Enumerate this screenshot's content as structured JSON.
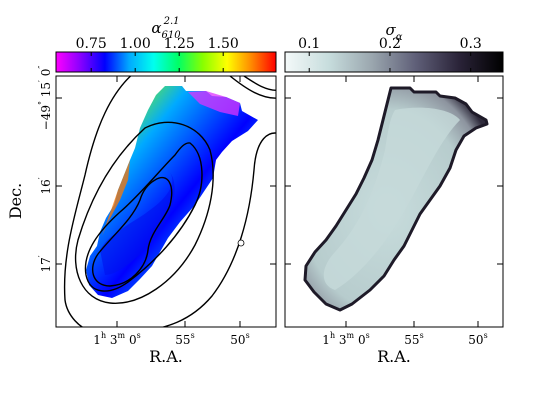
{
  "chart_data": [
    {
      "type": "heatmap",
      "colorbar": {
        "label_base": "α",
        "label_sub": "610",
        "label_sup": "2.1",
        "ticks": [
          "0.75",
          "1.00",
          "1.25",
          "1.50"
        ],
        "tick_values": [
          0.75,
          1.0,
          1.25,
          1.5
        ],
        "range": [
          0.55,
          1.8
        ],
        "colormap": [
          "#ff00ff",
          "#8800ff",
          "#0000ff",
          "#00aaff",
          "#00ffee",
          "#00ff66",
          "#88ff00",
          "#ffff00",
          "#ff8800",
          "#ff0000"
        ]
      },
      "xlabel": "R.A.",
      "ylabel": "Dec.",
      "x_ticks": [
        {
          "value": "1h 3m 0s",
          "parts": [
            "1",
            "h",
            " 3",
            "m",
            " 0",
            "s"
          ]
        },
        {
          "value": "55s",
          "parts": [
            "55",
            "s"
          ]
        },
        {
          "value": "50s",
          "parts": [
            "50",
            "s"
          ]
        }
      ],
      "y_ticks": [
        {
          "value": "−49° 15′ 0″",
          "parts": [
            "−49",
            "°",
            " 15",
            "′",
            " 0",
            "″"
          ]
        },
        {
          "value": "16′",
          "parts": [
            "16",
            "′"
          ]
        },
        {
          "value": "17′",
          "parts": [
            "17",
            "′"
          ]
        }
      ],
      "contours": 5,
      "grid": false
    },
    {
      "type": "heatmap",
      "colorbar": {
        "label_base": "σ",
        "label_sub": "α",
        "ticks": [
          "0.1",
          "0.2",
          "0.3"
        ],
        "tick_values": [
          0.1,
          0.2,
          0.3
        ],
        "range": [
          0.07,
          0.34
        ],
        "colormap": [
          "#f4f9f9",
          "#c7dddd",
          "#9aa6ae",
          "#5f5f78",
          "#2a2338",
          "#000000"
        ]
      },
      "xlabel": "R.A.",
      "x_ticks": [
        {
          "value": "1h 3m 0s",
          "parts": [
            "1",
            "h",
            " 3",
            "m",
            " 0",
            "s"
          ]
        },
        {
          "value": "55s",
          "parts": [
            "55",
            "s"
          ]
        },
        {
          "value": "50s",
          "parts": [
            "50",
            "s"
          ]
        }
      ],
      "grid": false
    }
  ]
}
